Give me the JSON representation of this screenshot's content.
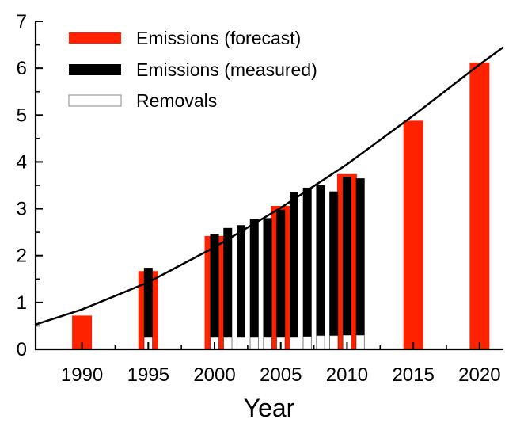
{
  "chart_data": {
    "type": "bar",
    "title": "",
    "xlabel": "Year",
    "ylabel": "",
    "xlim": [
      1986.5,
      2021.8
    ],
    "ylim": [
      0,
      7
    ],
    "x_ticks": [
      "1990",
      "1995",
      "2000",
      "2005",
      "2010",
      "2015",
      "2020"
    ],
    "y_ticks": [
      "0",
      "1",
      "2",
      "3",
      "4",
      "5",
      "6",
      "7"
    ],
    "legend_position": "top-left",
    "series": [
      {
        "name": "Emissions (forecast)",
        "color": "#ff2200",
        "x": [
          1990,
          1995,
          2000,
          2005,
          2010,
          2015,
          2020
        ],
        "values": [
          0.72,
          1.67,
          2.42,
          3.06,
          3.74,
          4.88,
          6.12
        ]
      },
      {
        "name": "Emissions (measured)",
        "color": "#000000",
        "x": [
          1995,
          2000,
          2001,
          2002,
          2003,
          2004,
          2005,
          2006,
          2007,
          2008,
          2009,
          2010,
          2011
        ],
        "values": [
          1.74,
          2.46,
          2.59,
          2.65,
          2.78,
          2.8,
          2.98,
          3.36,
          3.45,
          3.5,
          3.37,
          3.68,
          3.65
        ]
      },
      {
        "name": "Removals",
        "color": "#ffffff",
        "x": [
          1995,
          2000,
          2001,
          2002,
          2003,
          2004,
          2005,
          2006,
          2007,
          2008,
          2009,
          2010,
          2011
        ],
        "values": [
          0.25,
          0.25,
          0.25,
          0.25,
          0.25,
          0.25,
          0.25,
          0.25,
          0.27,
          0.29,
          0.29,
          0.3,
          0.3
        ]
      }
    ],
    "trend_line": {
      "color": "#000000",
      "x": [
        1986.5,
        1990,
        1995,
        2000,
        2005,
        2010,
        2015,
        2020,
        2021.8
      ],
      "values": [
        0.53,
        0.85,
        1.43,
        2.18,
        3.02,
        3.95,
        4.99,
        6.08,
        6.45
      ]
    }
  }
}
